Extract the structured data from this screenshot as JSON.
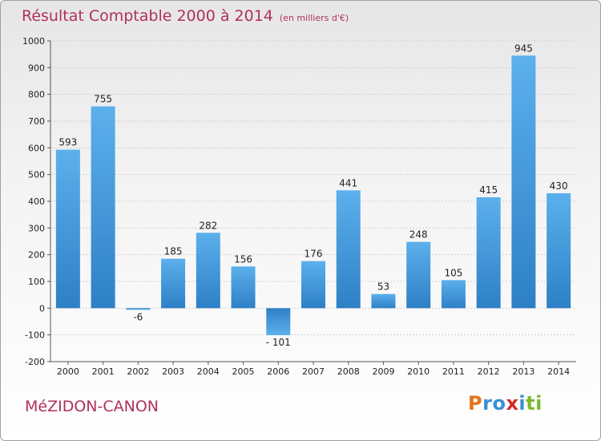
{
  "chart_data": {
    "type": "bar",
    "title": "Résultat Comptable 2000 à 2014",
    "unit": "(en milliers d'€)",
    "categories": [
      "2000",
      "2001",
      "2002",
      "2003",
      "2004",
      "2005",
      "2006",
      "2007",
      "2008",
      "2009",
      "2010",
      "2011",
      "2012",
      "2013",
      "2014"
    ],
    "values": [
      593,
      755,
      -6,
      185,
      282,
      156,
      -101,
      176,
      441,
      53,
      248,
      105,
      415,
      945,
      430
    ],
    "value_labels": [
      "593",
      "755",
      "-6",
      "185",
      "282",
      "156",
      "- 101",
      "176",
      "441",
      "53",
      "248",
      "105",
      "415",
      "945",
      "430"
    ],
    "ylim": [
      -200,
      1000
    ],
    "yticks": [
      -200,
      -100,
      0,
      100,
      200,
      300,
      400,
      500,
      600,
      700,
      800,
      900,
      1000
    ],
    "grid": true,
    "bar_color": "#4ca3e3"
  },
  "commune": "MéZIDON-CANON",
  "logo": {
    "letters": [
      "P",
      "r",
      "o",
      "x",
      "i",
      "t",
      "i"
    ],
    "colors": [
      "#e8731a",
      "#3a8fd6",
      "#3a8fd6",
      "#d42828",
      "#3a8fd6",
      "#7cb82f",
      "#7cb82f"
    ]
  }
}
